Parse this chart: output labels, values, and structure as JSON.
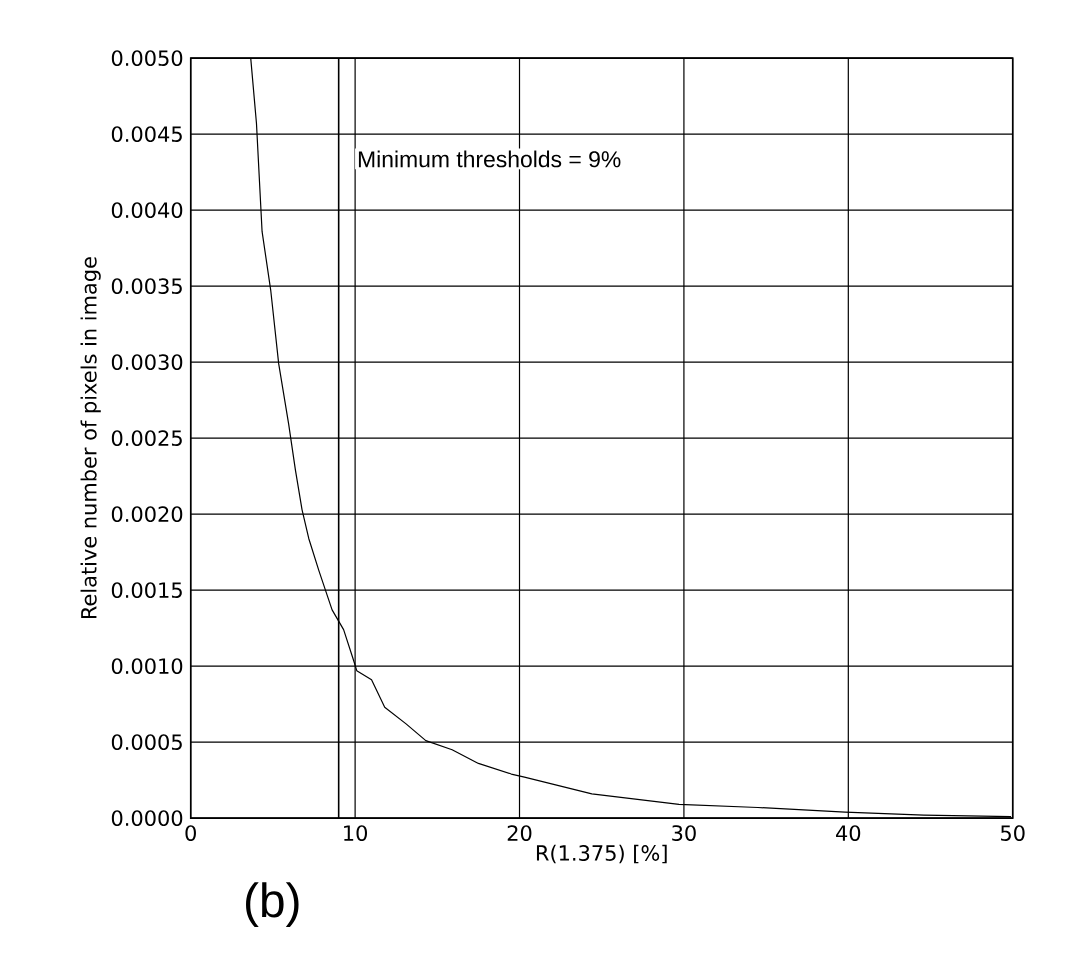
{
  "chart_data": {
    "type": "line",
    "xlabel": "R(1.375) [%]",
    "ylabel": "Relative number of pixels in image",
    "xlim": [
      0,
      50
    ],
    "ylim": [
      0,
      0.005
    ],
    "xticks": [
      0,
      10,
      20,
      30,
      40,
      50
    ],
    "yticks": [
      {
        "value": 0,
        "label": "0.0000"
      },
      {
        "value": 0.0005,
        "label": "0.0005"
      },
      {
        "value": 0.001,
        "label": "0.0010"
      },
      {
        "value": 0.0015,
        "label": "0.0015"
      },
      {
        "value": 0.002,
        "label": "0.0020"
      },
      {
        "value": 0.0025,
        "label": "0.0025"
      },
      {
        "value": 0.003,
        "label": "0.0030"
      },
      {
        "value": 0.0035,
        "label": "0.0035"
      },
      {
        "value": 0.004,
        "label": "0.0040"
      },
      {
        "value": 0.0045,
        "label": "0.0045"
      },
      {
        "value": 0.005,
        "label": "0.0050"
      }
    ],
    "grid": true,
    "marker": "none",
    "line_style": "solid",
    "series": [
      {
        "color": "#000000",
        "x": [
          3.65,
          4.0,
          4.34,
          4.87,
          5.35,
          5.96,
          6.37,
          6.77,
          7.18,
          7.79,
          8.6,
          9.3,
          9.9,
          10.1,
          11.0,
          11.8,
          13.1,
          14.3,
          15.9,
          17.5,
          19.5,
          20.3,
          24.4,
          29.7,
          34.5,
          39.8,
          44.6,
          49.9
        ],
        "values": [
          0.005,
          0.00457,
          0.00386,
          0.00347,
          0.00299,
          0.00259,
          0.00229,
          0.00203,
          0.00184,
          0.00163,
          0.00137,
          0.00124,
          0.00104,
          0.00097,
          0.00091,
          0.00073,
          0.00062,
          0.00051,
          0.00045,
          0.00036,
          0.00029,
          0.00027,
          0.00016,
          9e-05,
          7e-05,
          4e-05,
          2e-05,
          1e-05
        ]
      }
    ],
    "ref_lines": [
      {
        "axis": "x",
        "value": 9,
        "label": "Minimum thresholds = 9%",
        "color": "#000000",
        "line_style": "solid"
      }
    ],
    "annotations": [
      "(b)"
    ]
  }
}
